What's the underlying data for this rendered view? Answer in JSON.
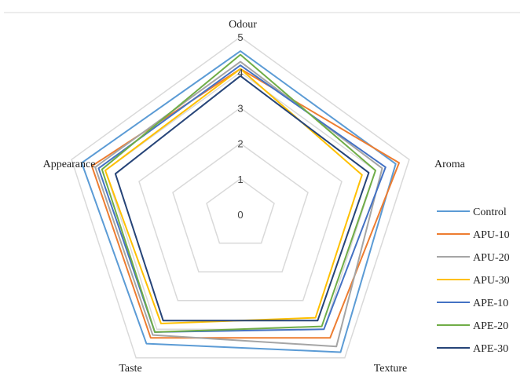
{
  "chart_data": {
    "type": "radar",
    "title": "",
    "axes": [
      "Odour",
      "Aroma",
      "Texture",
      "Taste",
      "Appearance"
    ],
    "rlim": [
      0,
      5
    ],
    "ticks": [
      "0",
      "1",
      "2",
      "3",
      "4",
      "5"
    ],
    "grid": true,
    "legend_position": "right",
    "series": [
      {
        "name": "Control",
        "color": "#5b9bd5",
        "values": [
          4.6,
          4.6,
          4.8,
          4.5,
          4.7
        ]
      },
      {
        "name": "APU-10",
        "color": "#ed7d31",
        "values": [
          4.1,
          4.7,
          4.3,
          4.3,
          4.4
        ]
      },
      {
        "name": "APU-20",
        "color": "#a5a5a5",
        "values": [
          4.3,
          4.2,
          4.6,
          4.2,
          4.3
        ]
      },
      {
        "name": "APU-30",
        "color": "#ffc000",
        "values": [
          4.1,
          3.6,
          3.6,
          3.8,
          4.0
        ]
      },
      {
        "name": "APE-10",
        "color": "#4472c4",
        "values": [
          4.2,
          4.3,
          4.0,
          4.1,
          4.2
        ]
      },
      {
        "name": "APE-20",
        "color": "#70ad47",
        "values": [
          4.5,
          4.0,
          3.9,
          4.1,
          4.1
        ]
      },
      {
        "name": "APE-30",
        "color": "#264478",
        "values": [
          3.9,
          3.8,
          3.7,
          3.7,
          3.7
        ]
      }
    ]
  }
}
